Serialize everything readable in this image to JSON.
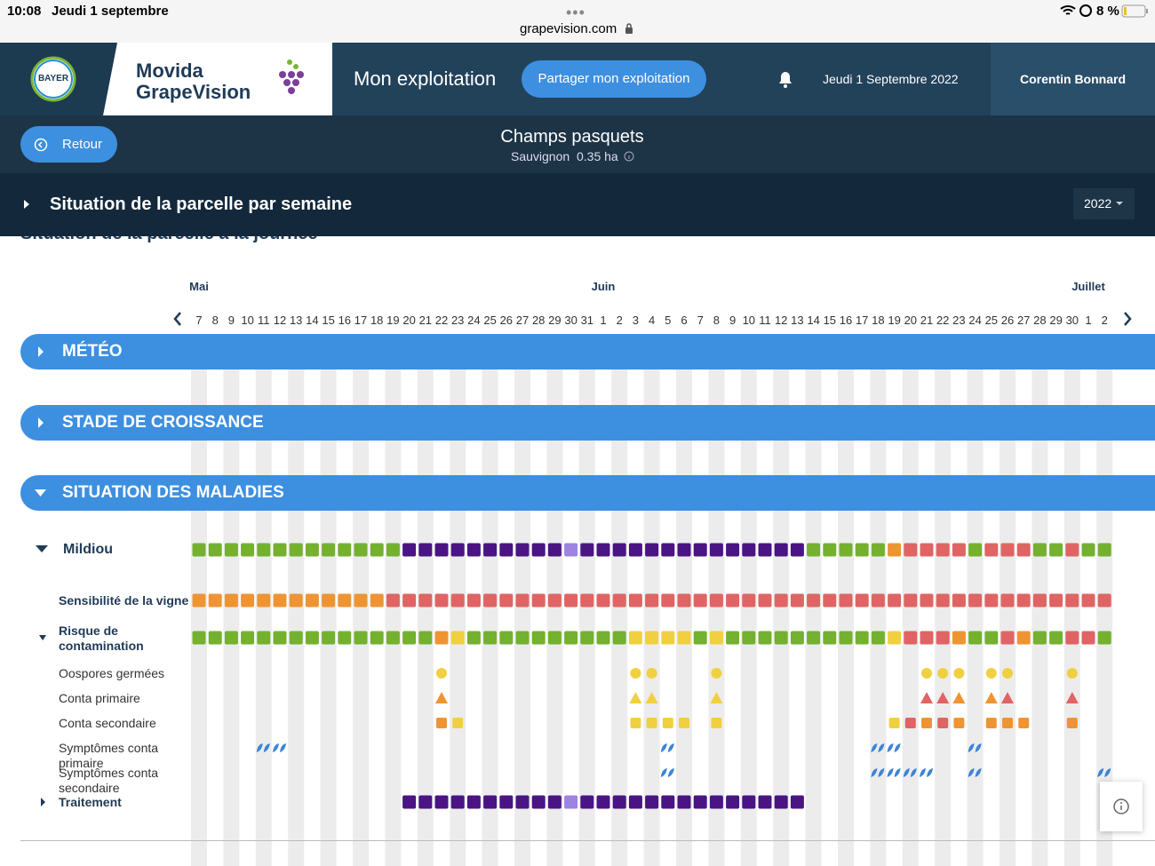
{
  "status_bar": {
    "time": "10:08",
    "date": "Jeudi 1 septembre",
    "url": "grapevision.com",
    "battery": "8 %"
  },
  "header": {
    "logo": "BAYER",
    "brand_line1": "Movida",
    "brand_line2": "GrapeVision",
    "nav": "Mon exploitation",
    "share_button": "Partager mon exploitation",
    "date": "Jeudi 1 Septembre 2022",
    "user": "Corentin Bonnard"
  },
  "parcel": {
    "back_button": "Retour",
    "name": "Champs pasquets",
    "variety": "Sauvignon",
    "area": "0.35 ha"
  },
  "section": {
    "title": "Situation de la parcelle par semaine",
    "year": "2022",
    "hidden_title": "Situation de la parcelle à la journée"
  },
  "calendar": {
    "months": [
      {
        "label": "Mai",
        "days": [
          7,
          8,
          9,
          10,
          11,
          12,
          13,
          14,
          15,
          16,
          17,
          18,
          19,
          20,
          21,
          22,
          23,
          24,
          25,
          26,
          27,
          28,
          29,
          30,
          31
        ]
      },
      {
        "label": "Juin",
        "days": [
          1,
          2,
          3,
          4,
          5,
          6,
          7,
          8,
          9,
          10,
          11,
          12,
          13,
          14,
          15,
          16,
          17,
          18,
          19,
          20,
          21,
          22,
          23,
          24,
          25,
          26,
          27,
          28,
          29,
          30
        ]
      },
      {
        "label": "Juillet",
        "days": [
          1,
          2
        ]
      }
    ]
  },
  "panels": [
    {
      "title": "MÉTÉO"
    },
    {
      "title": "STADE DE CROISSANCE"
    },
    {
      "title": "SITUATION DES MALADIES"
    }
  ],
  "disease": {
    "name": "Mildiou",
    "cells": [
      "#74b12f",
      "#74b12f",
      "#74b12f",
      "#74b12f",
      "#74b12f",
      "#74b12f",
      "#74b12f",
      "#74b12f",
      "#74b12f",
      "#74b12f",
      "#74b12f",
      "#74b12f",
      "#74b12f",
      "#4a1485",
      "#4a1485",
      "#4a1485",
      "#4a1485",
      "#4a1485",
      "#4a1485",
      "#4a1485",
      "#4a1485",
      "#4a1485",
      "#4a1485",
      "#9d84e3",
      "#4a1485",
      "#4a1485",
      "#4a1485",
      "#4a1485",
      "#4a1485",
      "#4a1485",
      "#4a1485",
      "#4a1485",
      "#4a1485",
      "#4a1485",
      "#4a1485",
      "#4a1485",
      "#4a1485",
      "#4a1485",
      "#74b12f",
      "#74b12f",
      "#74b12f",
      "#74b12f",
      "#74b12f",
      "#ef9433",
      "#e06464",
      "#e06464",
      "#e06464",
      "#e06464",
      "#74b12f",
      "#e06464",
      "#e06464",
      "#e06464",
      "#74b12f",
      "#74b12f",
      "#e06464",
      "#74b12f",
      "#74b12f"
    ]
  },
  "rows": [
    {
      "label": "Sensibilité de la vigne",
      "shape": "square",
      "cells": [
        "#ef9433",
        "#ef9433",
        "#ef9433",
        "#ef9433",
        "#ef9433",
        "#ef9433",
        "#ef9433",
        "#ef9433",
        "#ef9433",
        "#ef9433",
        "#ef9433",
        "#ef9433",
        "#e06464",
        "#e06464",
        "#e06464",
        "#e06464",
        "#e06464",
        "#e06464",
        "#e06464",
        "#e06464",
        "#e06464",
        "#e06464",
        "#e06464",
        "#e06464",
        "#e06464",
        "#e06464",
        "#e06464",
        "#e06464",
        "#e06464",
        "#e06464",
        "#e06464",
        "#e06464",
        "#e06464",
        "#e06464",
        "#e06464",
        "#e06464",
        "#e06464",
        "#e06464",
        "#e06464",
        "#e06464",
        "#e06464",
        "#e06464",
        "#e06464",
        "#e06464",
        "#e06464",
        "#e06464",
        "#e06464",
        "#e06464",
        "#e06464",
        "#e06464",
        "#e06464",
        "#e06464",
        "#e06464",
        "#e06464",
        "#e06464",
        "#e06464",
        "#e06464"
      ]
    },
    {
      "label": "Risque de contamination",
      "shape": "square",
      "cells": [
        "#74b12f",
        "#74b12f",
        "#74b12f",
        "#74b12f",
        "#74b12f",
        "#74b12f",
        "#74b12f",
        "#74b12f",
        "#74b12f",
        "#74b12f",
        "#74b12f",
        "#74b12f",
        "#74b12f",
        "#74b12f",
        "#74b12f",
        "#ef9433",
        "#f0d040",
        "#74b12f",
        "#74b12f",
        "#74b12f",
        "#74b12f",
        "#74b12f",
        "#74b12f",
        "#74b12f",
        "#74b12f",
        "#74b12f",
        "#74b12f",
        "#f0d040",
        "#f0d040",
        "#f0d040",
        "#f0d040",
        "#74b12f",
        "#f0d040",
        "#74b12f",
        "#74b12f",
        "#74b12f",
        "#74b12f",
        "#74b12f",
        "#74b12f",
        "#74b12f",
        "#74b12f",
        "#74b12f",
        "#74b12f",
        "#f0d040",
        "#e06464",
        "#e06464",
        "#e06464",
        "#ef9433",
        "#74b12f",
        "#74b12f",
        "#e06464",
        "#ef9433",
        "#74b12f",
        "#74b12f",
        "#e06464",
        "#e06464",
        "#74b12f"
      ]
    },
    {
      "label": "Oospores germées",
      "shape": "circle",
      "cells": [
        null,
        null,
        null,
        null,
        null,
        null,
        null,
        null,
        null,
        null,
        null,
        null,
        null,
        null,
        null,
        "#f0d040",
        null,
        null,
        null,
        null,
        null,
        null,
        null,
        null,
        null,
        null,
        null,
        "#f0d040",
        "#f0d040",
        null,
        null,
        null,
        "#f0d040",
        null,
        null,
        null,
        null,
        null,
        null,
        null,
        null,
        null,
        null,
        null,
        null,
        "#f0d040",
        "#f0d040",
        "#f0d040",
        null,
        "#f0d040",
        "#f0d040",
        null,
        null,
        null,
        "#f0d040",
        null,
        null
      ]
    },
    {
      "label": "Conta primaire",
      "shape": "triangle",
      "cells": [
        null,
        null,
        null,
        null,
        null,
        null,
        null,
        null,
        null,
        null,
        null,
        null,
        null,
        null,
        null,
        "#ef9433",
        null,
        null,
        null,
        null,
        null,
        null,
        null,
        null,
        null,
        null,
        null,
        "#f0d040",
        "#f0d040",
        null,
        null,
        null,
        "#f0d040",
        null,
        null,
        null,
        null,
        null,
        null,
        null,
        null,
        null,
        null,
        null,
        null,
        "#e06464",
        "#e06464",
        "#ef9433",
        null,
        "#ef9433",
        "#e06464",
        null,
        null,
        null,
        "#e06464",
        null,
        null
      ]
    },
    {
      "label": "Conta secondaire",
      "shape": "square",
      "cells": [
        null,
        null,
        null,
        null,
        null,
        null,
        null,
        null,
        null,
        null,
        null,
        null,
        null,
        null,
        null,
        "#ef9433",
        "#f0d040",
        null,
        null,
        null,
        null,
        null,
        null,
        null,
        null,
        null,
        null,
        "#f0d040",
        "#f0d040",
        "#f0d040",
        "#f0d040",
        null,
        "#f0d040",
        null,
        null,
        null,
        null,
        null,
        null,
        null,
        null,
        null,
        null,
        "#f0d040",
        "#e06464",
        "#ef9433",
        "#e06464",
        "#ef9433",
        null,
        "#ef9433",
        "#ef9433",
        "#ef9433",
        null,
        null,
        "#ef9433",
        null,
        null
      ]
    },
    {
      "label": "Symptômes conta primaire",
      "shape": "leaf",
      "cells": [
        null,
        null,
        null,
        null,
        "#3d84d6",
        "#3d84d6",
        null,
        null,
        null,
        null,
        null,
        null,
        null,
        null,
        null,
        null,
        null,
        null,
        null,
        null,
        null,
        null,
        null,
        null,
        null,
        null,
        null,
        null,
        null,
        "#3d84d6",
        null,
        null,
        null,
        null,
        null,
        null,
        null,
        null,
        null,
        null,
        null,
        null,
        "#3d84d6",
        "#3d84d6",
        null,
        null,
        null,
        null,
        "#3d84d6",
        null,
        null,
        null,
        null,
        null,
        null,
        null,
        null
      ]
    },
    {
      "label": "Symptômes conta secondaire",
      "shape": "leaf",
      "cells": [
        null,
        null,
        null,
        null,
        null,
        null,
        null,
        null,
        null,
        null,
        null,
        null,
        null,
        null,
        null,
        null,
        null,
        null,
        null,
        null,
        null,
        null,
        null,
        null,
        null,
        null,
        null,
        null,
        null,
        "#3d84d6",
        null,
        null,
        null,
        null,
        null,
        null,
        null,
        null,
        null,
        null,
        null,
        null,
        "#3d84d6",
        "#3d84d6",
        "#3d84d6",
        "#3d84d6",
        null,
        null,
        "#3d84d6",
        null,
        null,
        null,
        null,
        null,
        null,
        null,
        "#3d84d6"
      ]
    }
  ],
  "treatment": {
    "label": "Traitement",
    "cells": [
      null,
      null,
      null,
      null,
      null,
      null,
      null,
      null,
      null,
      null,
      null,
      null,
      null,
      "#4a1485",
      "#4a1485",
      "#4a1485",
      "#4a1485",
      "#4a1485",
      "#4a1485",
      "#4a1485",
      "#4a1485",
      "#4a1485",
      "#4a1485",
      "#9d84e3",
      "#4a1485",
      "#4a1485",
      "#4a1485",
      "#4a1485",
      "#4a1485",
      "#4a1485",
      "#4a1485",
      "#4a1485",
      "#4a1485",
      "#4a1485",
      "#4a1485",
      "#4a1485",
      "#4a1485",
      "#4a1485",
      null,
      null,
      null,
      null,
      null,
      null,
      null,
      null,
      null,
      null,
      null,
      null,
      null,
      null,
      null,
      null,
      null,
      null,
      null
    ]
  }
}
